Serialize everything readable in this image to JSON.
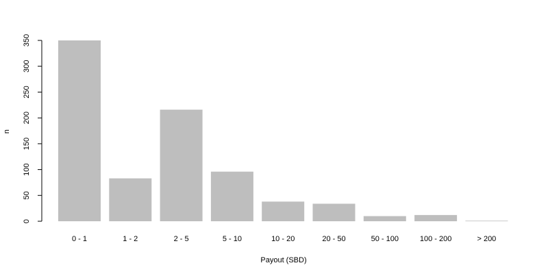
{
  "chart_data": {
    "type": "bar",
    "title": "",
    "xlabel": "Payout (SBD)",
    "ylabel": "n",
    "categories": [
      "0 - 1",
      "1 - 2",
      "2 - 5",
      "5 - 10",
      "10 - 20",
      "20 - 50",
      "50 - 100",
      "100 - 200",
      "> 200"
    ],
    "values": [
      350,
      83,
      216,
      96,
      38,
      34,
      10,
      12,
      1
    ],
    "ylim": [
      0,
      350
    ],
    "yticks": [
      0,
      50,
      100,
      150,
      200,
      250,
      300,
      350
    ],
    "grid": false,
    "legend": "none",
    "bar_color": "#bebebe",
    "axis_color": "#000000"
  }
}
